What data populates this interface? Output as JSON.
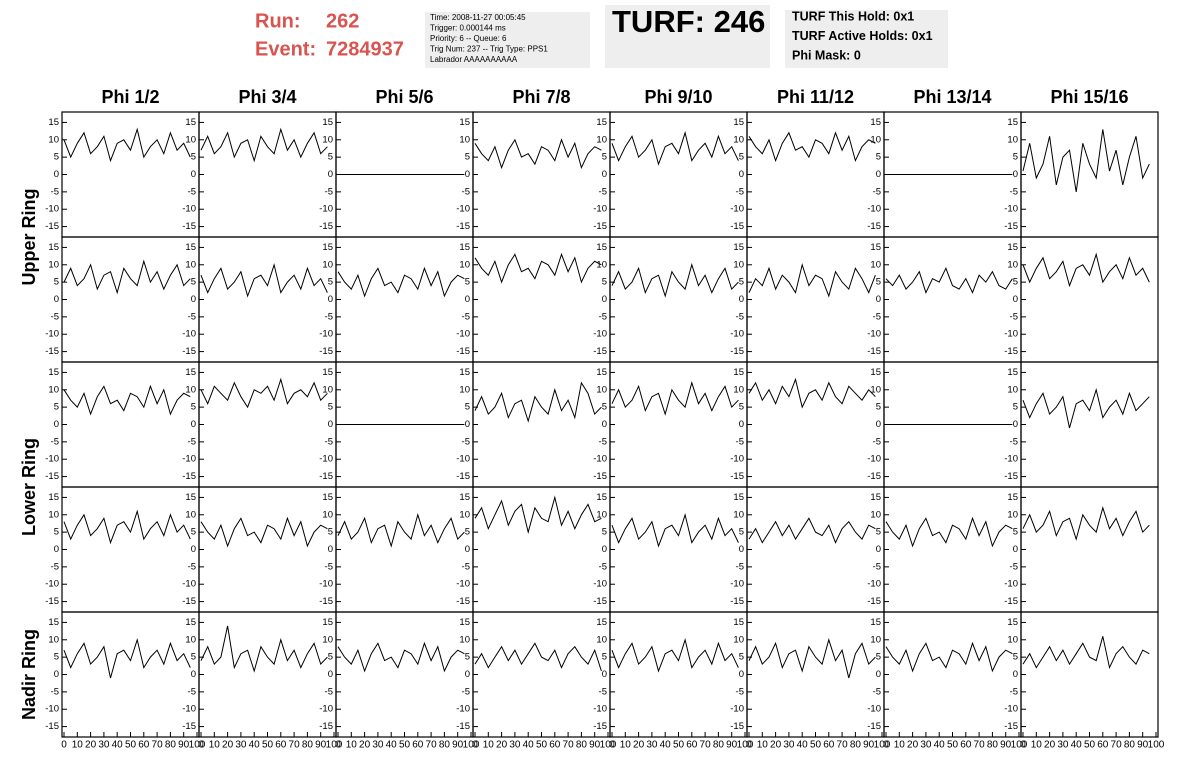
{
  "header": {
    "run_label": "Run:",
    "run": 262,
    "event_label": "Event:",
    "event": 7284937,
    "info": [
      "Time: 2008-11-27 00:05:45",
      "Trigger: 0.000144 ms",
      "Priority: 6 -- Queue: 6",
      "Trig Num: 237 -- Trig Type: PPS1",
      "Labrador AAAAAAAAAA"
    ],
    "turf": "TURF: 246",
    "status": [
      "TURF This Hold: 0x1",
      "TURF Active Holds: 0x1",
      "Phi Mask: 0"
    ]
  },
  "chart_data": {
    "type": "line",
    "columns": [
      "Phi 1/2",
      "Phi 3/4",
      "Phi 5/6",
      "Phi 7/8",
      "Phi 9/10",
      "Phi 11/12",
      "Phi 13/14",
      "Phi 15/16"
    ],
    "rows": [
      "Upper Ring",
      "Lower Ring",
      "Nadir Ring"
    ],
    "xlim": [
      0,
      100
    ],
    "ylim": [
      -18,
      18
    ],
    "xticks": [
      0,
      10,
      20,
      30,
      40,
      50,
      60,
      70,
      80,
      90,
      100
    ],
    "yticks": [
      -15,
      -10,
      -5,
      0,
      5,
      10,
      15
    ],
    "color": "#000000",
    "x": [
      0,
      5,
      10,
      15,
      20,
      25,
      30,
      35,
      40,
      45,
      50,
      55,
      60,
      65,
      70,
      75,
      80,
      85,
      90,
      95
    ],
    "series": [
      {
        "values": [
          10,
          5,
          9,
          12,
          6,
          8,
          11,
          4,
          9,
          10,
          7,
          13,
          5,
          8,
          10,
          6,
          12,
          7,
          9,
          5
        ]
      },
      {
        "values": [
          7,
          11,
          6,
          8,
          12,
          5,
          9,
          10,
          4,
          11,
          8,
          6,
          13,
          7,
          10,
          5,
          9,
          12,
          6,
          8
        ]
      },
      {
        "values": [
          0,
          0,
          0,
          0,
          0,
          0,
          0,
          0,
          0,
          0,
          0,
          0,
          0,
          0,
          0,
          0,
          0,
          0,
          0,
          0
        ]
      },
      {
        "values": [
          9,
          6,
          4,
          8,
          2,
          7,
          10,
          5,
          6,
          3,
          8,
          7,
          4,
          10,
          5,
          9,
          2,
          6,
          8,
          7
        ]
      },
      {
        "values": [
          9,
          4,
          8,
          11,
          5,
          7,
          10,
          3,
          8,
          9,
          6,
          12,
          4,
          7,
          9,
          5,
          11,
          6,
          8,
          4
        ]
      },
      {
        "values": [
          11,
          8,
          6,
          10,
          4,
          9,
          12,
          7,
          8,
          5,
          10,
          9,
          6,
          12,
          7,
          11,
          4,
          8,
          10,
          9
        ]
      },
      {
        "values": [
          0,
          0,
          0,
          0,
          0,
          0,
          0,
          0,
          0,
          0,
          0,
          0,
          0,
          0,
          0,
          0,
          0,
          0,
          0,
          0
        ]
      },
      {
        "values": [
          1,
          9,
          -1,
          3,
          11,
          -3,
          5,
          7,
          -5,
          9,
          3,
          -1,
          13,
          1,
          7,
          -3,
          5,
          11,
          -1,
          3
        ]
      },
      {
        "values": [
          5,
          9,
          4,
          6,
          10,
          3,
          7,
          8,
          2,
          9,
          6,
          4,
          11,
          5,
          8,
          3,
          7,
          10,
          4,
          6
        ]
      },
      {
        "values": [
          7,
          2,
          6,
          9,
          3,
          5,
          8,
          1,
          6,
          7,
          4,
          10,
          2,
          5,
          7,
          3,
          9,
          4,
          6,
          2
        ]
      },
      {
        "values": [
          8,
          5,
          3,
          7,
          1,
          6,
          9,
          4,
          5,
          2,
          7,
          6,
          3,
          9,
          4,
          8,
          1,
          5,
          7,
          6
        ]
      },
      {
        "values": [
          12,
          9,
          7,
          11,
          5,
          10,
          13,
          8,
          9,
          6,
          11,
          10,
          7,
          13,
          8,
          12,
          5,
          9,
          11,
          10
        ]
      },
      {
        "values": [
          4,
          8,
          3,
          5,
          9,
          2,
          6,
          7,
          1,
          8,
          5,
          3,
          10,
          4,
          7,
          2,
          6,
          9,
          3,
          5
        ]
      },
      {
        "values": [
          2,
          6,
          4,
          9,
          3,
          7,
          5,
          2,
          10,
          4,
          7,
          6,
          1,
          8,
          5,
          3,
          9,
          6,
          2,
          7
        ]
      },
      {
        "values": [
          6,
          4,
          7,
          3,
          5,
          8,
          2,
          6,
          5,
          9,
          4,
          3,
          6,
          2,
          7,
          5,
          8,
          4,
          3,
          6
        ]
      },
      {
        "values": [
          10,
          5,
          9,
          12,
          6,
          8,
          11,
          4,
          9,
          10,
          7,
          13,
          5,
          8,
          10,
          6,
          12,
          7,
          9,
          5
        ]
      },
      {
        "values": [
          10,
          7,
          5,
          9,
          3,
          8,
          11,
          6,
          7,
          4,
          9,
          8,
          5,
          11,
          6,
          10,
          3,
          7,
          9,
          8
        ]
      },
      {
        "values": [
          10,
          6,
          11,
          9,
          7,
          12,
          8,
          5,
          10,
          9,
          11,
          7,
          13,
          6,
          9,
          10,
          8,
          12,
          7,
          9
        ]
      },
      {
        "values": [
          0,
          0,
          0,
          0,
          0,
          0,
          0,
          0,
          0,
          0,
          0,
          0,
          0,
          0,
          0,
          0,
          0,
          0,
          0,
          0
        ]
      },
      {
        "values": [
          4,
          8,
          3,
          5,
          9,
          2,
          6,
          7,
          1,
          8,
          5,
          3,
          10,
          4,
          7,
          2,
          12,
          9,
          3,
          5
        ]
      },
      {
        "values": [
          6,
          10,
          5,
          7,
          11,
          4,
          8,
          9,
          3,
          10,
          7,
          5,
          12,
          6,
          9,
          4,
          8,
          11,
          5,
          7
        ]
      },
      {
        "values": [
          9,
          12,
          7,
          10,
          6,
          11,
          8,
          13,
          5,
          9,
          10,
          7,
          12,
          8,
          6,
          11,
          9,
          7,
          10,
          8
        ]
      },
      {
        "values": [
          0,
          0,
          0,
          0,
          0,
          0,
          0,
          0,
          0,
          0,
          0,
          0,
          0,
          0,
          0,
          0,
          0,
          0,
          0,
          0
        ]
      },
      {
        "values": [
          7,
          2,
          6,
          9,
          3,
          5,
          8,
          -1,
          6,
          7,
          4,
          10,
          2,
          5,
          7,
          3,
          9,
          4,
          6,
          8
        ]
      },
      {
        "values": [
          8,
          3,
          7,
          10,
          4,
          6,
          9,
          2,
          7,
          8,
          5,
          11,
          3,
          6,
          8,
          4,
          10,
          5,
          7,
          3
        ]
      },
      {
        "values": [
          8,
          5,
          3,
          7,
          1,
          6,
          9,
          4,
          5,
          2,
          7,
          6,
          3,
          9,
          4,
          8,
          1,
          5,
          7,
          6
        ]
      },
      {
        "values": [
          4,
          8,
          3,
          5,
          9,
          2,
          6,
          7,
          1,
          8,
          5,
          3,
          10,
          4,
          7,
          2,
          6,
          9,
          3,
          5
        ]
      },
      {
        "values": [
          9,
          12,
          6,
          10,
          14,
          7,
          11,
          13,
          5,
          12,
          9,
          8,
          15,
          7,
          11,
          6,
          10,
          13,
          8,
          9
        ]
      },
      {
        "values": [
          7,
          2,
          6,
          9,
          3,
          5,
          8,
          1,
          6,
          7,
          4,
          10,
          2,
          5,
          7,
          3,
          9,
          4,
          6,
          2
        ]
      },
      {
        "values": [
          3,
          6,
          2,
          5,
          8,
          4,
          7,
          3,
          6,
          9,
          5,
          4,
          7,
          2,
          6,
          8,
          5,
          3,
          7,
          6
        ]
      },
      {
        "values": [
          8,
          5,
          3,
          7,
          1,
          6,
          9,
          4,
          5,
          2,
          7,
          6,
          3,
          9,
          4,
          8,
          1,
          5,
          7,
          6
        ]
      },
      {
        "values": [
          6,
          10,
          5,
          7,
          11,
          4,
          8,
          9,
          3,
          10,
          7,
          5,
          12,
          6,
          9,
          4,
          8,
          11,
          5,
          7
        ]
      },
      {
        "values": [
          7,
          2,
          6,
          9,
          3,
          5,
          8,
          -1,
          6,
          7,
          4,
          10,
          2,
          5,
          7,
          3,
          9,
          4,
          6,
          2
        ]
      },
      {
        "values": [
          4,
          8,
          3,
          5,
          14,
          2,
          6,
          7,
          1,
          8,
          5,
          3,
          10,
          4,
          7,
          2,
          6,
          9,
          3,
          5
        ]
      },
      {
        "values": [
          8,
          5,
          3,
          7,
          1,
          6,
          9,
          4,
          5,
          2,
          7,
          6,
          3,
          9,
          4,
          8,
          1,
          5,
          7,
          6
        ]
      },
      {
        "values": [
          3,
          6,
          2,
          5,
          8,
          4,
          7,
          3,
          6,
          9,
          5,
          4,
          7,
          2,
          6,
          8,
          5,
          3,
          7,
          1
        ]
      },
      {
        "values": [
          7,
          2,
          6,
          9,
          3,
          5,
          8,
          1,
          6,
          7,
          4,
          10,
          2,
          5,
          7,
          3,
          9,
          4,
          6,
          2
        ]
      },
      {
        "values": [
          4,
          8,
          3,
          5,
          9,
          2,
          6,
          7,
          1,
          8,
          5,
          3,
          10,
          4,
          7,
          -1,
          6,
          9,
          3,
          5
        ]
      },
      {
        "values": [
          8,
          5,
          3,
          7,
          1,
          6,
          9,
          4,
          5,
          2,
          7,
          6,
          3,
          9,
          4,
          8,
          1,
          5,
          7,
          6
        ]
      },
      {
        "values": [
          3,
          6,
          2,
          5,
          8,
          4,
          7,
          3,
          6,
          9,
          5,
          4,
          11,
          2,
          6,
          8,
          5,
          3,
          7,
          6
        ]
      }
    ]
  }
}
